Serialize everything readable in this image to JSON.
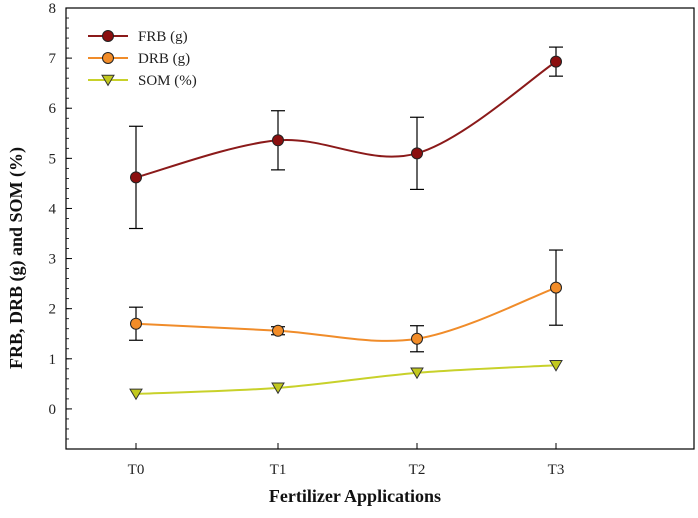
{
  "chart_data": {
    "type": "line",
    "title": "",
    "xlabel": "Fertilizer Applications",
    "ylabel": "FRB, DRB (g) and SOM (%)",
    "categories": [
      "T0",
      "T1",
      "T2",
      "T3"
    ],
    "ylim": [
      -0.8,
      8
    ],
    "yticks": [
      0,
      1,
      2,
      3,
      4,
      5,
      6,
      7,
      8
    ],
    "legend_position": "top-left",
    "grid": false,
    "series": [
      {
        "name": "FRB (g)",
        "marker": "circle",
        "line_color": "#8b1a1a",
        "marker_color": "#8b0f0f",
        "values": [
          4.62,
          5.36,
          5.1,
          6.93
        ],
        "errors": [
          1.02,
          0.59,
          0.72,
          0.29
        ]
      },
      {
        "name": "DRB (g)",
        "marker": "circle",
        "line_color": "#f08c2a",
        "marker_color": "#f28c28",
        "values": [
          1.7,
          1.56,
          1.4,
          2.42
        ],
        "errors": [
          0.33,
          0.08,
          0.26,
          0.75
        ]
      },
      {
        "name": "SOM (%)",
        "marker": "triangle-down",
        "line_color": "#c8d12a",
        "marker_color": "#c2c81e",
        "values": [
          0.3,
          0.42,
          0.72,
          0.87
        ],
        "errors": [
          0,
          0,
          0,
          0
        ]
      }
    ]
  }
}
